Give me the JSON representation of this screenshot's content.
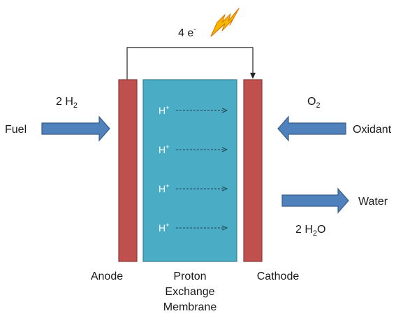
{
  "electrons": {
    "count": "4",
    "symbol": "e",
    "charge": "-"
  },
  "fuel": {
    "label": "Fuel",
    "coefficient": "2",
    "species": "H",
    "subscript": "2"
  },
  "oxidant": {
    "label": "Oxidant",
    "species": "O",
    "subscript": "2"
  },
  "water": {
    "label": "Water",
    "coefficient": "2",
    "species_h": "H",
    "subscript": "2",
    "species_o": "O"
  },
  "protons": [
    {
      "symbol": "H",
      "charge": "+"
    },
    {
      "symbol": "H",
      "charge": "+"
    },
    {
      "symbol": "H",
      "charge": "+"
    },
    {
      "symbol": "H",
      "charge": "+"
    }
  ],
  "anode": {
    "label": "Anode"
  },
  "cathode": {
    "label": "Cathode"
  },
  "membrane": {
    "lines": [
      "Proton",
      "Exchange",
      "Membrane"
    ]
  },
  "colors": {
    "electrode_fill": "#c0504d",
    "electrode_stroke": "#8c3836",
    "membrane_fill": "#4bacc6",
    "membrane_stroke": "#357d91",
    "arrow_fill": "#4f81bd",
    "arrow_stroke": "#385d8a",
    "lightning_fill": "#f5b800",
    "lightning_stroke": "#e07b00"
  },
  "icons": {
    "lightning": "lightning-bolt-icon"
  }
}
